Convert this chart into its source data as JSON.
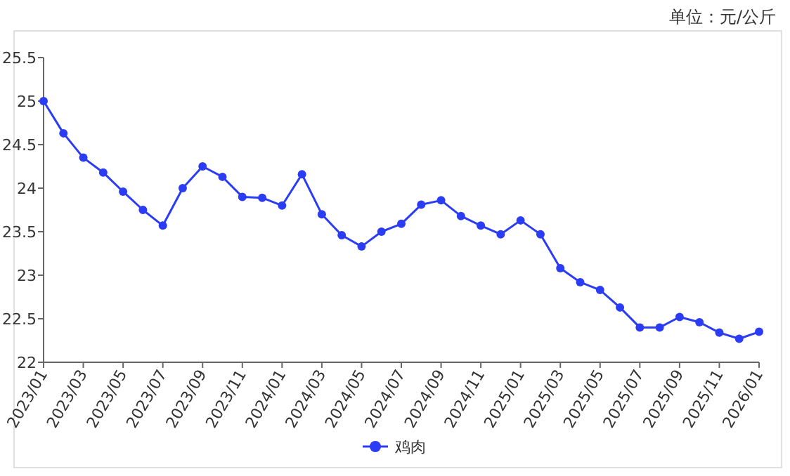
{
  "chart_data": {
    "type": "line",
    "categories": [
      "2023/01",
      null,
      "2023/03",
      null,
      "2023/05",
      null,
      "2023/07",
      null,
      "2023/09",
      null,
      "2023/11",
      null,
      "2024/01",
      null,
      "2024/03",
      null,
      "2024/05",
      null,
      "2024/07",
      null,
      "2024/09",
      null,
      "2024/11",
      null,
      "2025/01",
      null,
      "2025/03",
      null,
      "2025/05",
      null,
      "2025/07",
      null,
      "2025/09",
      null,
      "2025/11",
      null,
      "2026/01"
    ],
    "series": [
      {
        "name": "鸡肉",
        "color": "#2b3cf5",
        "values": [
          25.0,
          24.63,
          24.35,
          24.18,
          23.96,
          23.75,
          23.57,
          24.0,
          24.25,
          24.13,
          23.9,
          23.89,
          23.8,
          24.16,
          23.7,
          23.46,
          23.33,
          23.5,
          23.59,
          23.81,
          23.86,
          23.68,
          23.57,
          23.47,
          23.63,
          23.47,
          23.08,
          22.92,
          22.83,
          22.63,
          22.4,
          22.4,
          22.52,
          22.46,
          22.34,
          22.27,
          22.35
        ]
      }
    ],
    "ylim": [
      22,
      25.5
    ],
    "yticks": [
      22,
      22.5,
      23,
      23.5,
      24,
      24.5,
      25,
      25.5
    ],
    "annotations": [
      "单位：元/公斤"
    ],
    "legend": "bottom",
    "marker": "circle",
    "line_style": "solid",
    "grid": false
  }
}
